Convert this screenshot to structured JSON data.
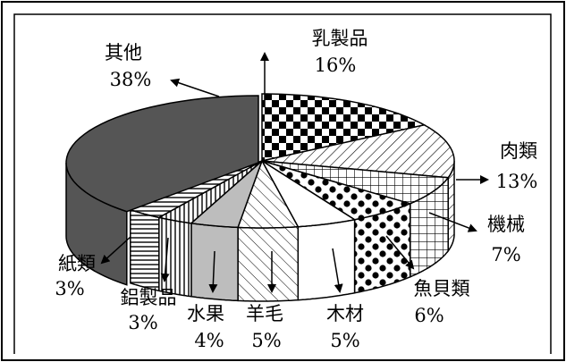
{
  "chart_data": {
    "type": "pie",
    "title": "",
    "style": "3d-exploded-ellipse",
    "categories": [
      "乳製品",
      "肉類",
      "機械",
      "魚貝類",
      "木材",
      "羊毛",
      "水果",
      "鋁製品",
      "紙類",
      "其他"
    ],
    "values": [
      16,
      13,
      7,
      6,
      5,
      5,
      4,
      3,
      3,
      38
    ],
    "labels": [
      {
        "name": "乳製品",
        "pct": "16%"
      },
      {
        "name": "肉類",
        "pct": "13%"
      },
      {
        "name": "機械",
        "pct": "7%"
      },
      {
        "name": "魚貝類",
        "pct": "6%"
      },
      {
        "name": "木材",
        "pct": "5%"
      },
      {
        "name": "羊毛",
        "pct": "5%"
      },
      {
        "name": "水果",
        "pct": "4%"
      },
      {
        "name": "鋁製品",
        "pct": "3%"
      },
      {
        "name": "紙類",
        "pct": "3%"
      },
      {
        "name": "其他",
        "pct": "38%"
      }
    ],
    "fills": [
      "checker",
      "diagonal-lines",
      "grid",
      "dots",
      "white",
      "cross-diagonal",
      "gray",
      "vertical-lines",
      "horizontal-lines",
      "dark-gray"
    ],
    "colors": {
      "dark": "#555555",
      "gray": "#bdbdbd",
      "ink": "#000000",
      "paper": "#ffffff"
    }
  }
}
